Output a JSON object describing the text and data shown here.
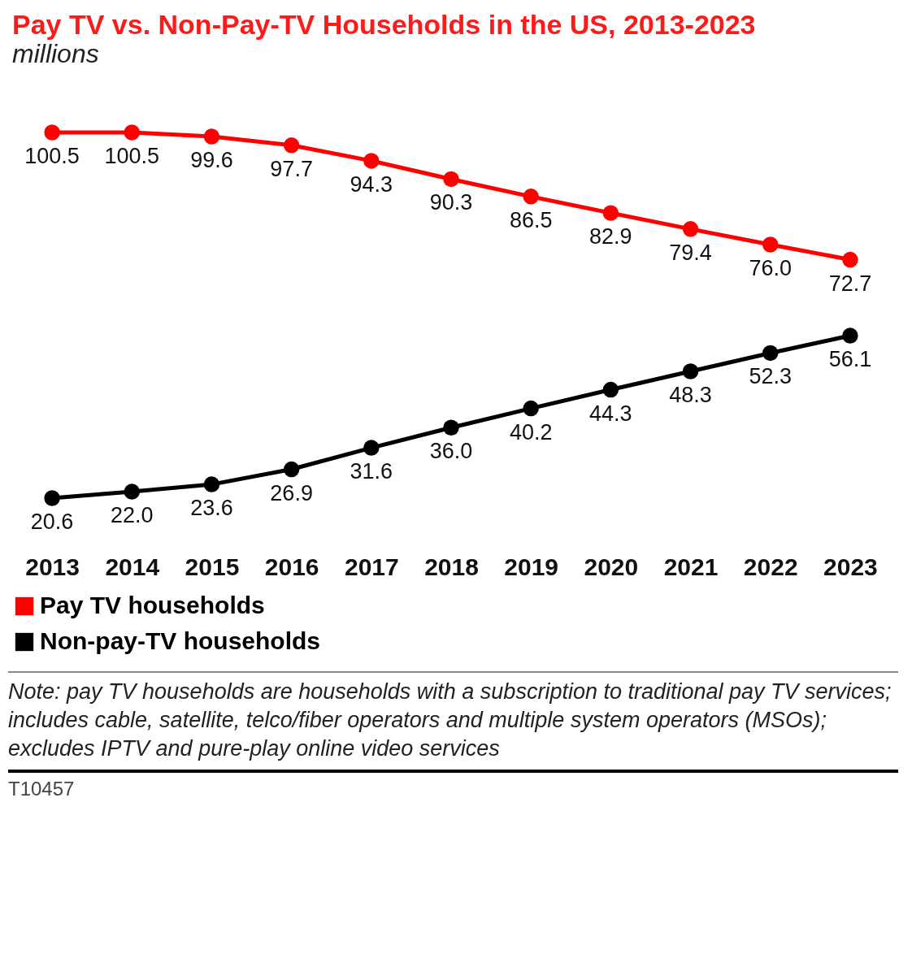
{
  "chart_data": {
    "type": "line",
    "title": "Pay TV vs. Non-Pay-TV Households in the US, 2013-2023",
    "subtitle": "millions",
    "categories": [
      "2013",
      "2014",
      "2015",
      "2016",
      "2017",
      "2018",
      "2019",
      "2020",
      "2021",
      "2022",
      "2023"
    ],
    "series": [
      {
        "name": "Pay TV households",
        "color": "#ff0000",
        "values": [
          100.5,
          100.5,
          99.6,
          97.7,
          94.3,
          90.3,
          86.5,
          82.9,
          79.4,
          76.0,
          72.7
        ],
        "value_labels": [
          "100.5",
          "100.5",
          "99.6",
          "97.7",
          "94.3",
          "90.3",
          "86.5",
          "82.9",
          "79.4",
          "76.0",
          "72.7"
        ]
      },
      {
        "name": "Non-pay-TV households",
        "color": "#000000",
        "values": [
          20.6,
          22.0,
          23.6,
          26.9,
          31.6,
          36.0,
          40.2,
          44.3,
          48.3,
          52.3,
          56.1
        ],
        "value_labels": [
          "20.6",
          "22.0",
          "23.6",
          "26.9",
          "31.6",
          "36.0",
          "40.2",
          "44.3",
          "48.3",
          "52.3",
          "56.1"
        ]
      }
    ],
    "marker": "circle",
    "line_style": "solid",
    "grid": false,
    "legend": "bottom left",
    "tick_labels": "x",
    "annotations": [
      "Note: pay TV households are households with a subscription to traditional pay TV services; includes cable, satellite, telco/fiber operators and multiple system operators (MSOs); excludes IPTV and pure-play online video services",
      "T10457"
    ]
  }
}
